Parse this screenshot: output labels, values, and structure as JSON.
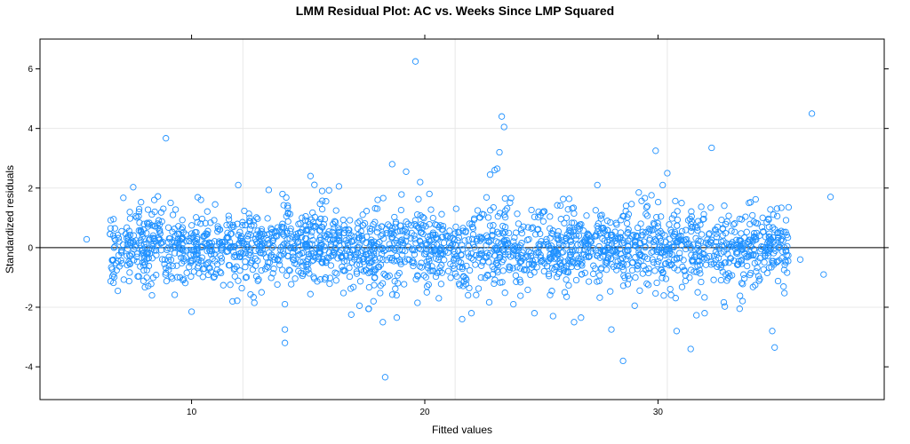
{
  "chart_data": {
    "type": "scatter",
    "title": "LMM Residual Plot: AC vs. Weeks Since LMP Squared",
    "xlabel": "Fitted values",
    "ylabel": "Standardized residuals",
    "xlim": [
      3.5,
      39.7
    ],
    "ylim": [
      -5.1,
      7.0
    ],
    "x_ticks": [
      10,
      20,
      30
    ],
    "y_ticks": [
      -4,
      -2,
      0,
      2,
      4,
      6
    ],
    "x_grid": [
      12.2,
      21.3,
      30.4
    ],
    "y_grid": [
      -2,
      0,
      2,
      4
    ],
    "reference_line_y": 0,
    "grid": true,
    "marker": "open-circle",
    "series_color": "#1e90ff",
    "bulk_cloud": {
      "x_range": [
        6.5,
        35.6
      ],
      "residual_sd_range": [
        0.55,
        0.75
      ],
      "approx_point_count": 2200
    },
    "points": [
      [
        5.5,
        0.28
      ],
      [
        6.7,
        0.3
      ],
      [
        7.0,
        0.55
      ],
      [
        7.9,
        -0.5
      ],
      [
        8.3,
        -1.6
      ],
      [
        8.4,
        1.6
      ],
      [
        8.9,
        3.67
      ],
      [
        9.1,
        1.5
      ],
      [
        9.5,
        -1.0
      ],
      [
        10.0,
        -2.15
      ],
      [
        12.0,
        2.1
      ],
      [
        13.0,
        -1.5
      ],
      [
        15.1,
        2.4
      ],
      [
        15.6,
        1.9
      ],
      [
        14.0,
        -1.9
      ],
      [
        14.0,
        -2.75
      ],
      [
        14.0,
        -3.2
      ],
      [
        16.2,
        -1.1
      ],
      [
        17.2,
        -1.95
      ],
      [
        17.6,
        -2.05
      ],
      [
        17.8,
        -1.8
      ],
      [
        18.2,
        -2.5
      ],
      [
        18.3,
        -4.35
      ],
      [
        18.8,
        -2.35
      ],
      [
        18.6,
        2.8
      ],
      [
        19.2,
        2.55
      ],
      [
        19.6,
        6.25
      ],
      [
        19.8,
        2.2
      ],
      [
        20.1,
        -1.3
      ],
      [
        20.6,
        -1.7
      ],
      [
        21.6,
        -2.4
      ],
      [
        22.0,
        -2.2
      ],
      [
        22.8,
        2.45
      ],
      [
        23.0,
        2.6
      ],
      [
        23.1,
        2.65
      ],
      [
        23.2,
        3.2
      ],
      [
        23.3,
        4.4
      ],
      [
        23.4,
        4.05
      ],
      [
        23.8,
        -1.9
      ],
      [
        24.7,
        -2.2
      ],
      [
        25.5,
        -2.3
      ],
      [
        26.0,
        -1.5
      ],
      [
        26.4,
        -2.5
      ],
      [
        26.7,
        -2.35
      ],
      [
        28.0,
        -2.75
      ],
      [
        28.5,
        -3.8
      ],
      [
        27.4,
        2.1
      ],
      [
        29.0,
        -1.95
      ],
      [
        29.9,
        3.25
      ],
      [
        30.2,
        2.1
      ],
      [
        30.4,
        2.5
      ],
      [
        30.8,
        -2.8
      ],
      [
        31.4,
        -3.4
      ],
      [
        31.7,
        -1.5
      ],
      [
        32.0,
        -2.2
      ],
      [
        32.3,
        3.35
      ],
      [
        33.5,
        -2.05
      ],
      [
        33.9,
        1.5
      ],
      [
        34.9,
        -2.8
      ],
      [
        35.0,
        -3.35
      ],
      [
        36.1,
        -0.4
      ],
      [
        36.6,
        4.5
      ],
      [
        37.1,
        -0.9
      ],
      [
        37.4,
        1.7
      ],
      [
        9.2,
        1.1
      ],
      [
        11.6,
        0.95
      ]
    ]
  }
}
